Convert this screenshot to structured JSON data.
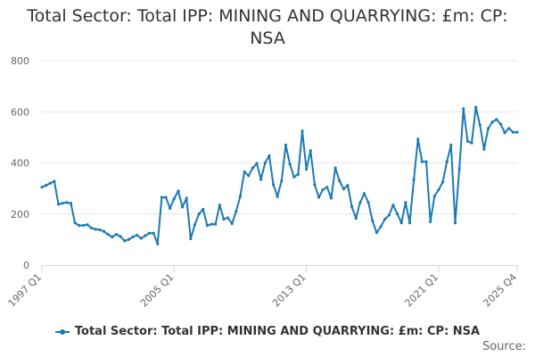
{
  "title_line1": "Total Sector: Total IPP: MINING AND QUARRYING: £m: CP:",
  "title_line2": "NSA",
  "source_label": "Source:",
  "colors": {
    "series": "#1a7ab5",
    "grid": "#e6e6e6",
    "axis": "#ccd6eb",
    "text": "#666666"
  },
  "chart_data": {
    "type": "line",
    "title": "Total Sector: Total IPP: MINING AND QUARRYING: £m: CP: NSA",
    "xlabel": "",
    "ylabel": "",
    "ylim": [
      0,
      800
    ],
    "y_ticks": [
      0,
      200,
      400,
      600,
      800
    ],
    "x_tick_labels": [
      "1997 Q1",
      "2005 Q1",
      "2013 Q1",
      "2021 Q1",
      "2025 Q4"
    ],
    "x_tick_indices": [
      0,
      32,
      64,
      96,
      115
    ],
    "series": [
      {
        "name": "Total Sector: Total IPP: MINING AND QUARRYING: £m: CP: NSA",
        "values": [
          305,
          312,
          320,
          328,
          238,
          242,
          245,
          242,
          165,
          155,
          155,
          158,
          145,
          140,
          138,
          132,
          120,
          110,
          120,
          112,
          95,
          100,
          110,
          117,
          105,
          115,
          125,
          125,
          83,
          265,
          265,
          222,
          260,
          290,
          227,
          262,
          103,
          158,
          200,
          218,
          155,
          160,
          160,
          235,
          180,
          185,
          162,
          210,
          270,
          365,
          350,
          380,
          398,
          335,
          400,
          428,
          315,
          268,
          330,
          470,
          395,
          345,
          355,
          525,
          375,
          448,
          315,
          265,
          295,
          305,
          262,
          380,
          330,
          298,
          312,
          228,
          183,
          245,
          280,
          245,
          173,
          127,
          150,
          180,
          195,
          235,
          200,
          165,
          245,
          165,
          335,
          493,
          405,
          405,
          170,
          270,
          295,
          325,
          405,
          470,
          165,
          375,
          612,
          485,
          478,
          618,
          548,
          453,
          535,
          560,
          570,
          552,
          518,
          535,
          520,
          520
        ]
      }
    ]
  }
}
